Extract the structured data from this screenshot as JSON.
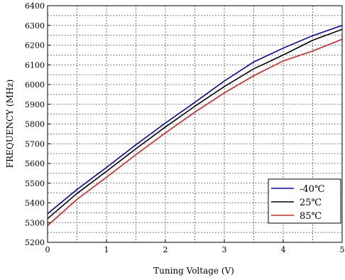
{
  "chart_data": {
    "type": "line",
    "title": "",
    "xlabel": "Tuning Voltage (V)",
    "ylabel": "FREQUENCY (MHz)",
    "xlim": [
      0,
      5
    ],
    "ylim": [
      5200,
      6400
    ],
    "x_ticks": [
      "0",
      "1",
      "2",
      "3",
      "4",
      "5"
    ],
    "y_ticks": [
      "5200",
      "5300",
      "5400",
      "5500",
      "5600",
      "5700",
      "5800",
      "5900",
      "6000",
      "6100",
      "6200",
      "6300",
      "6400"
    ],
    "grid": true,
    "legend_position": "bottom-right",
    "series": [
      {
        "name": "-40℃",
        "color": "#0000cc",
        "x": [
          0,
          0.5,
          1,
          1.5,
          2,
          2.5,
          3,
          3.5,
          4,
          4.5,
          5
        ],
        "y": [
          5345,
          5468,
          5580,
          5695,
          5805,
          5910,
          6018,
          6115,
          6185,
          6248,
          6300
        ]
      },
      {
        "name": "25℃",
        "color": "#000000",
        "x": [
          0,
          0.5,
          1,
          1.5,
          2,
          2.5,
          3,
          3.5,
          4,
          4.5,
          5
        ],
        "y": [
          5320,
          5448,
          5560,
          5675,
          5785,
          5890,
          5990,
          6080,
          6150,
          6225,
          6280
        ]
      },
      {
        "name": "85℃",
        "color": "#e02020",
        "x": [
          0,
          0.5,
          1,
          1.5,
          2,
          2.5,
          3,
          3.5,
          4,
          4.5,
          5
        ],
        "y": [
          5285,
          5418,
          5530,
          5645,
          5755,
          5860,
          5958,
          6045,
          6120,
          6170,
          6230
        ]
      }
    ]
  }
}
